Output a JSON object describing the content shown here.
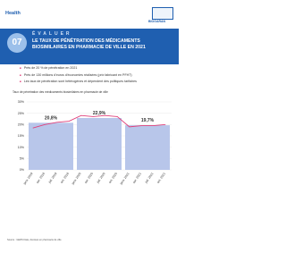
{
  "header": {
    "logo_left": "Health",
    "logo_right": "BIOGARAN",
    "section_number": "07",
    "section": "ÉVALUER",
    "title": "LE TAUX DE PÉNÉTRATION DES MÉDICAMENTS BIOSIMILAIRES EN PHARMACIE DE VILLE EN 2021"
  },
  "bullets": [
    "Près de 20 % de pénétration en 2021",
    "Près de 130 millions d'euros d'économies réalisées (prix fabricant en PFHT)",
    "Les taux de pénétration sont hétérogènes et dépendent des politiques tarifaires"
  ],
  "chart_data": {
    "type": "bar-line",
    "title": "Taux de pénétration des médicaments biosimilaires en pharmacie de ville",
    "categories": [
      "janv. 2019",
      "avr. 2019",
      "juil. 2019",
      "oct. 2019",
      "janv. 2020",
      "avr. 2020",
      "juil. 2020",
      "oct. 2020",
      "janv. 2021",
      "avr. 2021",
      "juil. 2021",
      "oct. 2021"
    ],
    "bars": {
      "values": [
        20.8,
        22.9,
        19.7
      ],
      "value_labels": [
        "20,8%",
        "22,9%",
        "19,7%"
      ],
      "color": "#b8c6ea"
    },
    "line": {
      "values": [
        18.5,
        20,
        21,
        21.5,
        24,
        23.5,
        24,
        23.5,
        19,
        19.5,
        19.5,
        20
      ],
      "color": "#e0407a"
    },
    "ylim": [
      0,
      30
    ],
    "yticks": [
      {
        "value": 0,
        "label": "0%"
      },
      {
        "value": 5,
        "label": "5%"
      },
      {
        "value": 10,
        "label": "10%"
      },
      {
        "value": 15,
        "label": "15%"
      },
      {
        "value": 20,
        "label": "20%"
      },
      {
        "value": 25,
        "label": "25%"
      },
      {
        "value": 30,
        "label": "30%"
      }
    ],
    "grid": true
  },
  "footer": "Source : GERS Data, données en pharmacie de ville"
}
